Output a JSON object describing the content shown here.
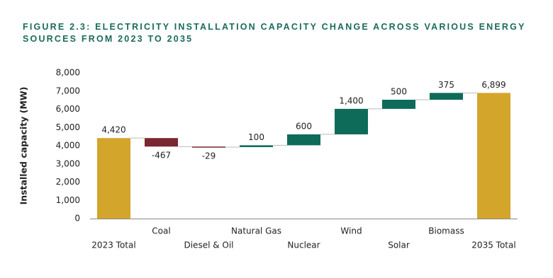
{
  "chart_data": {
    "type": "waterfall",
    "title": "FIGURE 2.3: ELECTRICITY INSTALLATION CAPACITY CHANGE ACROSS VARIOUS ENERGY SOURCES FROM 2023 TO 2035",
    "y_axis_label": "Installed capacity (MW)",
    "categories": [
      "2023 Total",
      "Coal",
      "Diesel & Oil",
      "Natural Gas",
      "Nuclear",
      "Wind",
      "Solar",
      "Biomass",
      "2035 Total"
    ],
    "values": [
      4420,
      -467,
      -29,
      100,
      600,
      1400,
      500,
      375,
      6899
    ],
    "value_labels": [
      "4,420",
      "-467",
      "-29",
      "100",
      "600",
      "1,400",
      "500",
      "375",
      "6,899"
    ],
    "is_total": [
      true,
      false,
      false,
      false,
      false,
      false,
      false,
      false,
      true
    ],
    "total_color": "#d4a52b",
    "increase_color": "#0e6b59",
    "decrease_color": "#7a2731",
    "ylim": [
      0,
      8000
    ],
    "yticks": [
      0,
      {
        "value": 1000,
        "label": "1,000"
      },
      {
        "value": 2000,
        "label": "2,000"
      },
      {
        "value": 3000,
        "label": "3,000"
      },
      {
        "value": 4000,
        "label": "4,000"
      },
      {
        "value": 5000,
        "label": "5,000"
      },
      {
        "value": 6000,
        "label": "6,000"
      },
      {
        "value": 7000,
        "label": "7,000"
      },
      {
        "value": 8000,
        "label": "8,000"
      }
    ],
    "grid": false
  }
}
